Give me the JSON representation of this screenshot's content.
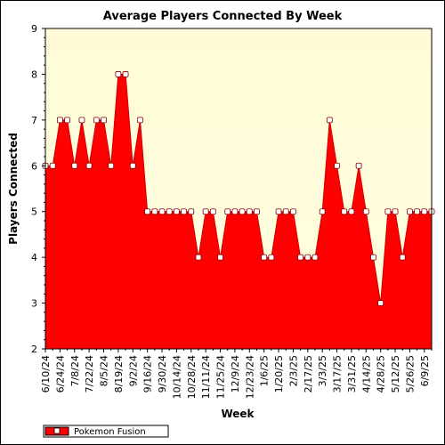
{
  "chart_data": {
    "type": "area",
    "title": "Average Players Connected By Week",
    "xlabel": "Week",
    "ylabel": "Players Connected",
    "ylim": [
      2,
      9
    ],
    "yticks": [
      2,
      3,
      4,
      5,
      6,
      7,
      8,
      9
    ],
    "grid": false,
    "legend_position": "bottom-left",
    "plot_background": "#ffffe0",
    "area_color": "#ff0000",
    "line_color": "#cc0000",
    "marker_fill": "#ffffff",
    "x": [
      "6/10/24",
      "6/17/24",
      "6/24/24",
      "7/1/24",
      "7/8/24",
      "7/15/24",
      "7/22/24",
      "7/29/24",
      "8/5/24",
      "8/12/24",
      "8/19/24",
      "8/26/24",
      "9/2/24",
      "9/9/24",
      "9/16/24",
      "9/23/24",
      "9/30/24",
      "10/7/24",
      "10/14/24",
      "10/21/24",
      "10/28/24",
      "11/4/24",
      "11/11/24",
      "11/18/24",
      "11/25/24",
      "12/2/24",
      "12/9/24",
      "12/16/24",
      "12/23/24",
      "12/30/24",
      "1/6/25",
      "1/13/25",
      "1/20/25",
      "1/27/25",
      "2/3/25",
      "2/10/25",
      "2/17/25",
      "2/24/25",
      "3/3/25",
      "3/10/25",
      "3/17/25",
      "3/24/25",
      "3/31/25",
      "4/7/25",
      "4/14/25",
      "4/21/25",
      "4/28/25",
      "5/5/25",
      "5/12/25",
      "5/19/25",
      "5/26/25",
      "6/2/25",
      "6/9/25",
      "6/16/25"
    ],
    "tick_labels": [
      "6/10/24",
      "6/24/24",
      "7/8/24",
      "7/22/24",
      "8/5/24",
      "8/19/24",
      "9/2/24",
      "9/16/24",
      "9/30/24",
      "10/14/24",
      "10/28/24",
      "11/11/24",
      "11/25/24",
      "12/9/24",
      "12/23/24",
      "1/6/25",
      "1/20/25",
      "2/3/25",
      "2/17/25",
      "3/3/25",
      "3/17/25",
      "3/31/25",
      "4/14/25",
      "4/28/25",
      "5/12/25",
      "5/26/25",
      "6/9/25"
    ],
    "series": [
      {
        "name": "Pokemon Fusion",
        "values": [
          6,
          6,
          7,
          7,
          6,
          7,
          6,
          7,
          7,
          6,
          8,
          8,
          6,
          7,
          5,
          5,
          5,
          5,
          5,
          5,
          5,
          4,
          5,
          5,
          4,
          5,
          5,
          5,
          5,
          5,
          4,
          4,
          5,
          5,
          5,
          4,
          4,
          4,
          5,
          7,
          6,
          5,
          5,
          6,
          5,
          4,
          3,
          5,
          5,
          4,
          5,
          5,
          5,
          5
        ]
      }
    ]
  }
}
